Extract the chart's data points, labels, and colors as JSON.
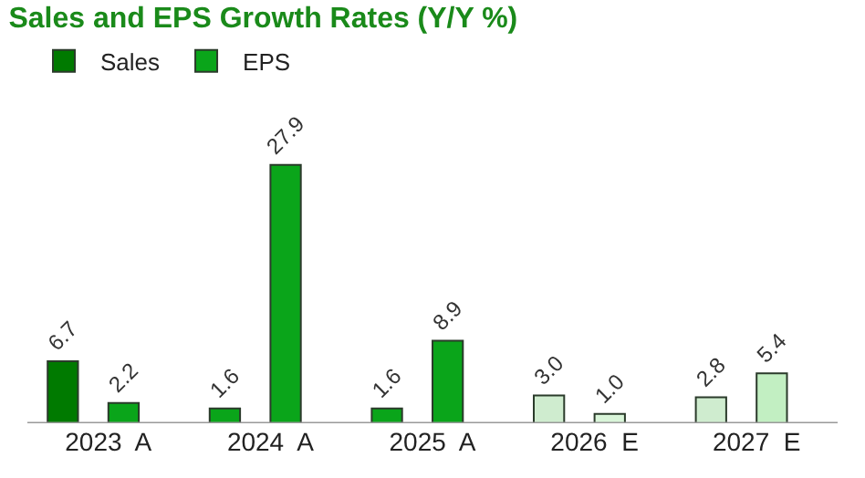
{
  "chart_data": {
    "type": "bar",
    "title": "Sales and EPS Growth Rates (Y/Y %)",
    "categories": [
      "2023  A",
      "2024  A",
      "2025  A",
      "2026  E",
      "2027  E"
    ],
    "series": [
      {
        "name": "Sales",
        "color": "#007a00",
        "colors": [
          "#007a00",
          "#0aa51a",
          "#0aa51a",
          "#cfeccf",
          "#cfeccf"
        ],
        "values": [
          6.7,
          1.6,
          1.6,
          3.0,
          2.8
        ],
        "value_labels": [
          "6.7",
          "1.6",
          "1.6",
          "3.0",
          "2.8"
        ]
      },
      {
        "name": "EPS",
        "color": "#0aa51a",
        "colors": [
          "#0aa51a",
          "#0aa51a",
          "#0aa51a",
          "#d9f5d9",
          "#c2efc2"
        ],
        "values": [
          2.2,
          27.9,
          8.9,
          1.0,
          5.4
        ],
        "value_labels": [
          "2.2",
          "27.9",
          "8.9",
          "1.0",
          "5.4"
        ]
      }
    ],
    "legend": "top left"
  }
}
